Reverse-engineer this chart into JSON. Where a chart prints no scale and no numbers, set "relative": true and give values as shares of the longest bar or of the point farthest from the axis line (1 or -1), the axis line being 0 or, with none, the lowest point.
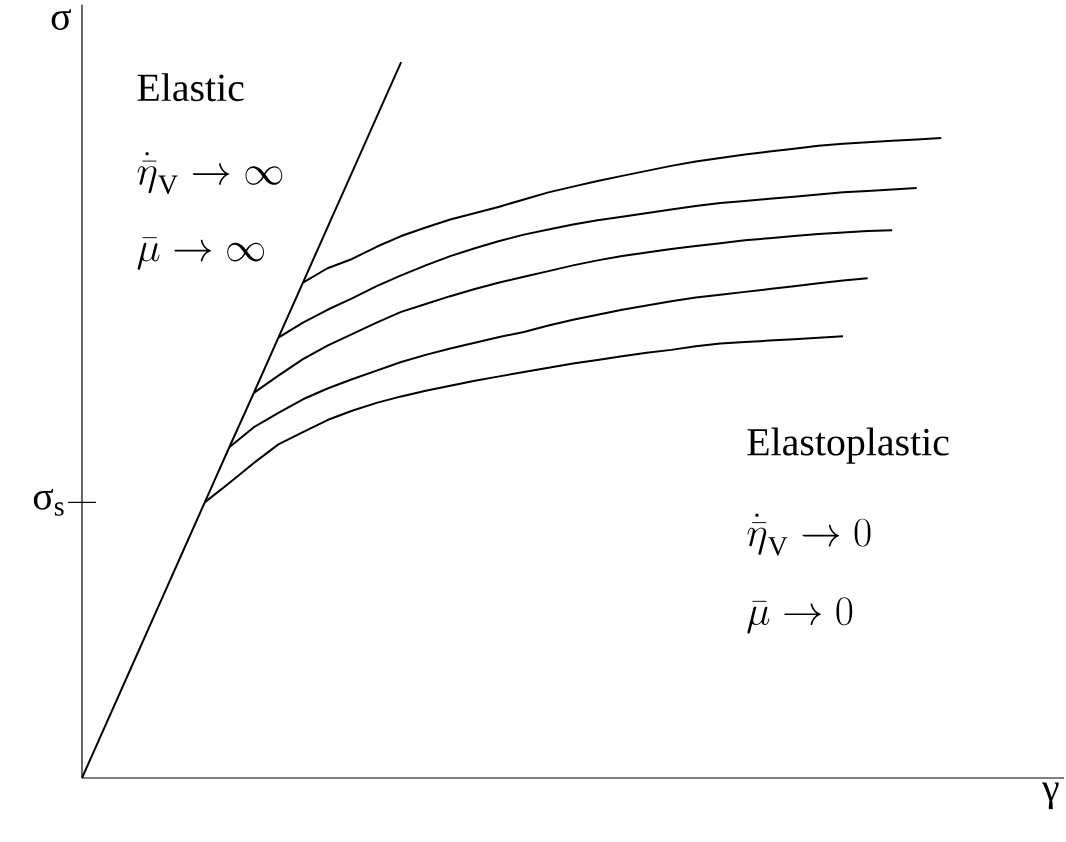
{
  "chart_data": {
    "type": "line",
    "relative": true,
    "xlabel": "γ",
    "ylabel": "σ",
    "categories": [
      null,
      null,
      null,
      null,
      null,
      null,
      null,
      null,
      null,
      null,
      null,
      null,
      null,
      null,
      null,
      null,
      null,
      null,
      null,
      null,
      null,
      null,
      null,
      null,
      null,
      null,
      null,
      null,
      null,
      null,
      null,
      null,
      null,
      null,
      null,
      null,
      null,
      null,
      null,
      null,
      null
    ],
    "series": [
      {
        "color": "#000000",
        "values": [
          0,
          0.077,
          0.154,
          0.231,
          0.308,
          0.385,
          0.462,
          0.538,
          0.615,
          0.692,
          0.769,
          0.846,
          0.923,
          1,
          null,
          null,
          null,
          null,
          null,
          null,
          null,
          null,
          null,
          null,
          null,
          null,
          null,
          null,
          null,
          null,
          null,
          null,
          null,
          null,
          null,
          null,
          null,
          null,
          null,
          null,
          null
        ]
      },
      {
        "color": "#000000",
        "values": [
          null,
          null,
          null,
          null,
          null,
          0.385,
          0.412,
          0.44,
          0.466,
          0.483,
          0.5,
          0.513,
          0.524,
          0.533,
          0.541,
          0.548,
          0.555,
          0.561,
          0.567,
          0.573,
          0.579,
          0.584,
          0.589,
          0.594,
          0.598,
          0.603,
          0.607,
          0.609,
          0.611,
          0.613,
          0.615,
          0.617,
          null,
          null,
          null,
          null,
          null,
          null,
          null,
          null,
          null
        ]
      },
      {
        "color": "#000000",
        "values": [
          null,
          null,
          null,
          null,
          null,
          null,
          0.462,
          0.49,
          0.51,
          0.529,
          0.544,
          0.557,
          0.569,
          0.581,
          0.591,
          0.6,
          0.608,
          0.616,
          0.623,
          0.632,
          0.64,
          0.647,
          0.654,
          0.66,
          0.666,
          0.671,
          0.675,
          0.679,
          0.683,
          0.687,
          0.691,
          0.695,
          0.698,
          null,
          null,
          null,
          null,
          null,
          null,
          null,
          null
        ]
      },
      {
        "color": "#000000",
        "values": [
          null,
          null,
          null,
          null,
          null,
          null,
          null,
          0.538,
          0.562,
          0.585,
          0.604,
          0.62,
          0.636,
          0.651,
          0.662,
          0.673,
          0.683,
          0.692,
          0.7,
          0.708,
          0.716,
          0.723,
          0.729,
          0.734,
          0.739,
          0.743,
          0.747,
          0.751,
          0.754,
          0.757,
          0.76,
          0.762,
          0.764,
          0.765,
          null,
          null,
          null,
          null,
          null,
          null,
          null
        ]
      },
      {
        "color": "#000000",
        "values": [
          null,
          null,
          null,
          null,
          null,
          null,
          null,
          null,
          0.615,
          0.636,
          0.654,
          0.67,
          0.687,
          0.702,
          0.716,
          0.729,
          0.74,
          0.75,
          0.759,
          0.766,
          0.773,
          0.779,
          0.784,
          0.789,
          0.794,
          0.799,
          0.803,
          0.806,
          0.809,
          0.812,
          0.815,
          0.818,
          0.82,
          0.822,
          0.824,
          null,
          null,
          null,
          null,
          null,
          null
        ]
      },
      {
        "color": "#000000",
        "values": [
          null,
          null,
          null,
          null,
          null,
          null,
          null,
          null,
          null,
          0.692,
          0.712,
          0.725,
          0.742,
          0.757,
          0.769,
          0.78,
          0.789,
          0.798,
          0.808,
          0.818,
          0.826,
          0.834,
          0.841,
          0.848,
          0.855,
          0.861,
          0.866,
          0.871,
          0.875,
          0.879,
          0.883,
          0.886,
          0.888,
          0.89,
          0.892,
          0.894,
          null,
          null,
          null,
          null,
          null
        ]
      }
    ],
    "annotations": [
      "Elastic",
      "\\dot{\\bar{\\eta}}_{\\mathrm{V}} \\rightarrow \\infty",
      "\\bar{\\mu} \\rightarrow \\infty",
      "Elastoplastic",
      "\\dot{\\bar{\\eta}}_{\\mathrm{V}} \\rightarrow 0",
      "\\bar{\\mu} \\rightarrow 0",
      "σ$_{s}$"
    ],
    "marker": "none",
    "line_style": "solid"
  }
}
